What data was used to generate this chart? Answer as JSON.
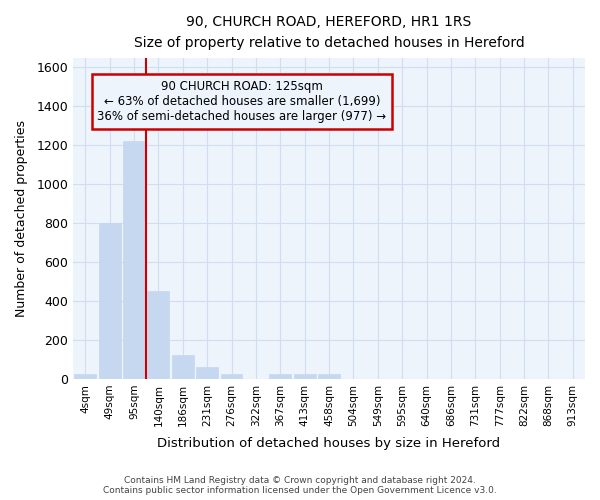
{
  "title": "90, CHURCH ROAD, HEREFORD, HR1 1RS",
  "subtitle": "Size of property relative to detached houses in Hereford",
  "xlabel": "Distribution of detached houses by size in Hereford",
  "ylabel": "Number of detached properties",
  "footer_line1": "Contains HM Land Registry data © Crown copyright and database right 2024.",
  "footer_line2": "Contains public sector information licensed under the Open Government Licence v3.0.",
  "bar_color": "#c5d8f0",
  "bar_edge_color": "#c5d8f0",
  "grid_color": "#d0dff0",
  "background_color": "#ffffff",
  "plot_bg_color": "#eef4fc",
  "annotation_box_color": "#cc0000",
  "vline_color": "#cc0000",
  "categories": [
    "4sqm",
    "49sqm",
    "95sqm",
    "140sqm",
    "186sqm",
    "231sqm",
    "276sqm",
    "322sqm",
    "367sqm",
    "413sqm",
    "458sqm",
    "504sqm",
    "549sqm",
    "595sqm",
    "640sqm",
    "686sqm",
    "731sqm",
    "777sqm",
    "822sqm",
    "868sqm",
    "913sqm"
  ],
  "values": [
    25,
    800,
    1220,
    450,
    125,
    60,
    25,
    0,
    25,
    25,
    25,
    0,
    0,
    0,
    0,
    0,
    0,
    0,
    0,
    0,
    0
  ],
  "ylim": [
    0,
    1650
  ],
  "yticks": [
    0,
    200,
    400,
    600,
    800,
    1000,
    1200,
    1400,
    1600
  ],
  "vline_position": 2.5,
  "annotation_text_line1": "90 CHURCH ROAD: 125sqm",
  "annotation_text_line2": "← 63% of detached houses are smaller (1,699)",
  "annotation_text_line3": "36% of semi-detached houses are larger (977) →",
  "figsize": [
    6.0,
    5.0
  ],
  "dpi": 100
}
